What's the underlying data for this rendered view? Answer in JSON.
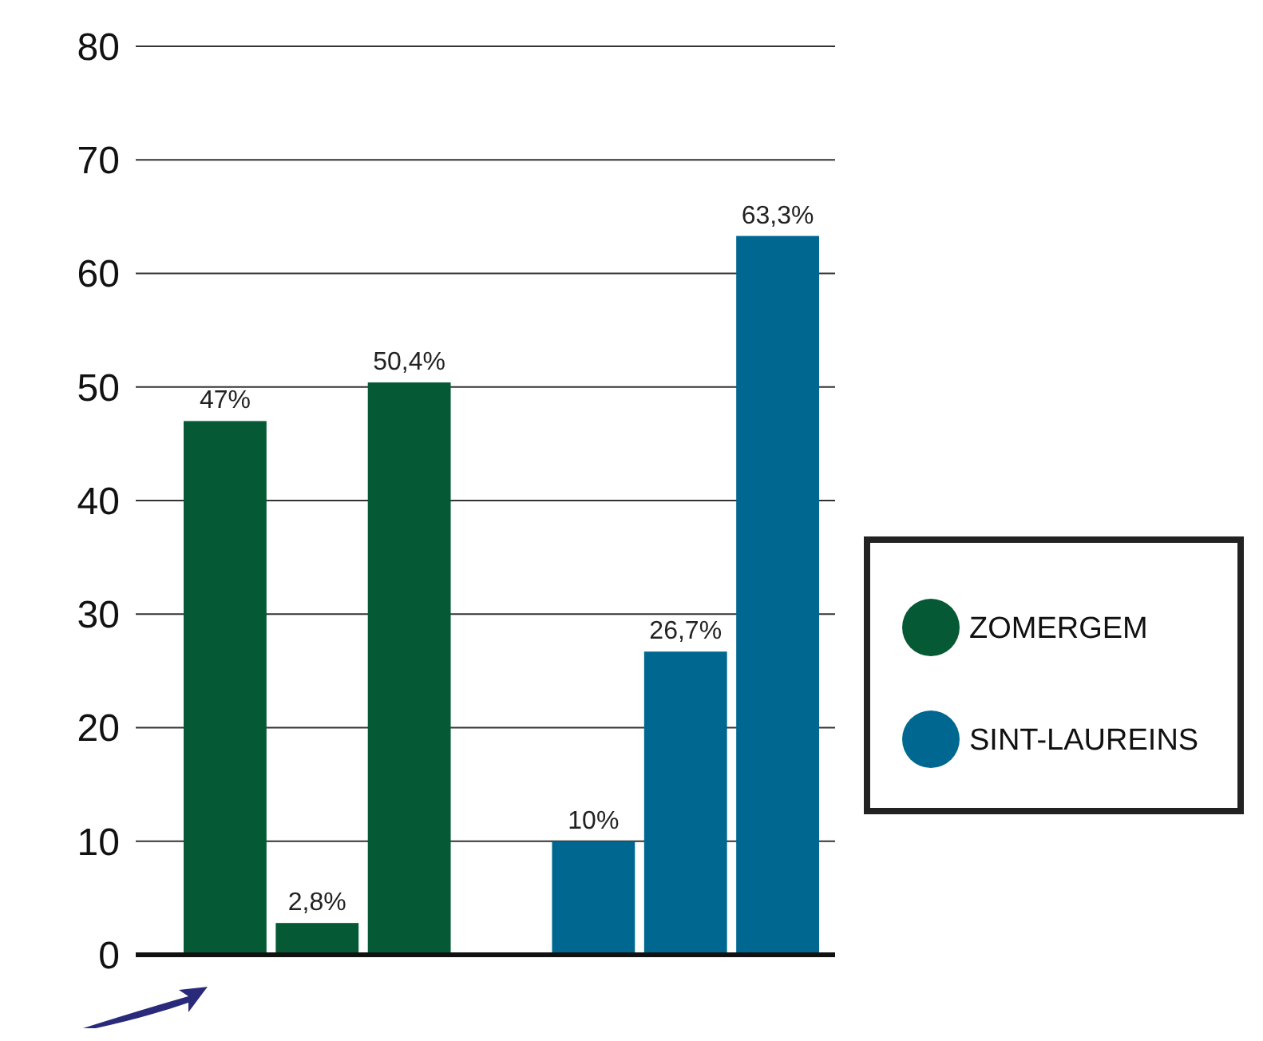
{
  "chart_data": {
    "type": "bar",
    "stacked": true,
    "categories": [
      null,
      null,
      null,
      null,
      null,
      null,
      null
    ],
    "series": [
      {
        "name": "ZOMERGEM",
        "color": "#055a35",
        "values": [
          47,
          2.8,
          50.4,
          null,
          null,
          null,
          null
        ],
        "value_labels": [
          "47%",
          "2,8%",
          "50,4%",
          null,
          null,
          null,
          null
        ]
      },
      {
        "name": "SINT-LAUREINS",
        "color": "#006890",
        "values": [
          null,
          null,
          null,
          null,
          10,
          26.7,
          63.3
        ],
        "value_labels": [
          null,
          null,
          null,
          null,
          "10%",
          "26,7%",
          "63,3%"
        ]
      }
    ],
    "ylim": [
      0,
      80
    ],
    "yticks": [
      0,
      10,
      20,
      30,
      40,
      50,
      60,
      70,
      80
    ],
    "grid": "y",
    "legend": "right"
  }
}
